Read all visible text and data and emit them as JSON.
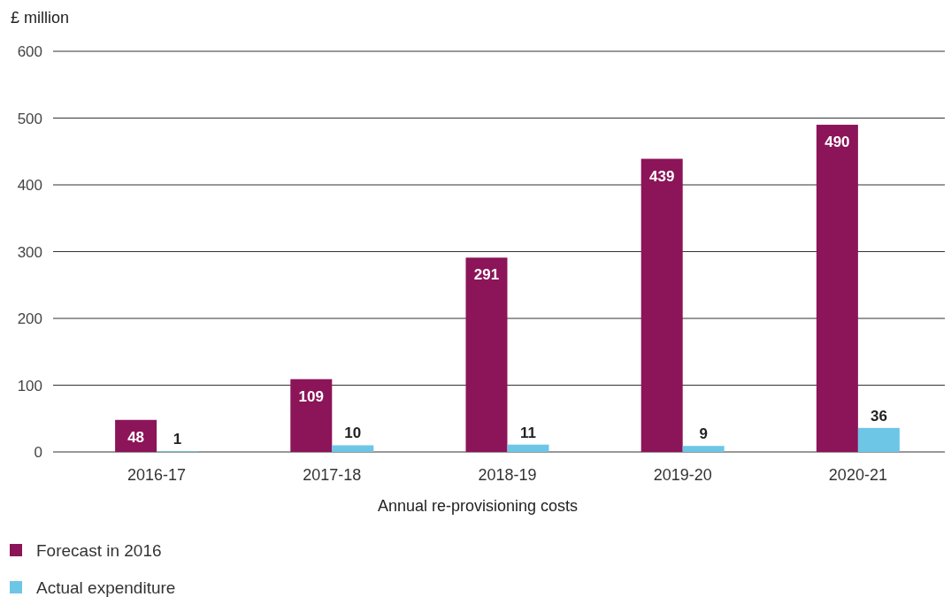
{
  "chart_data": {
    "type": "bar",
    "ylabel": "£ million",
    "xlabel": "Annual re-provisioning costs",
    "categories": [
      "2016-17",
      "2017-18",
      "2018-19",
      "2019-20",
      "2020-21"
    ],
    "series": [
      {
        "name": "Forecast in 2016",
        "color": "#8c1459",
        "values": [
          48,
          109,
          291,
          439,
          490
        ]
      },
      {
        "name": "Actual expenditure",
        "color": "#6ec6e6",
        "values": [
          1,
          10,
          11,
          9,
          36
        ]
      }
    ],
    "ylim": [
      0,
      600
    ],
    "yticks": [
      0,
      100,
      200,
      300,
      400,
      500,
      600
    ],
    "grid": "y",
    "legend": "bottom left",
    "data_labels": true
  }
}
